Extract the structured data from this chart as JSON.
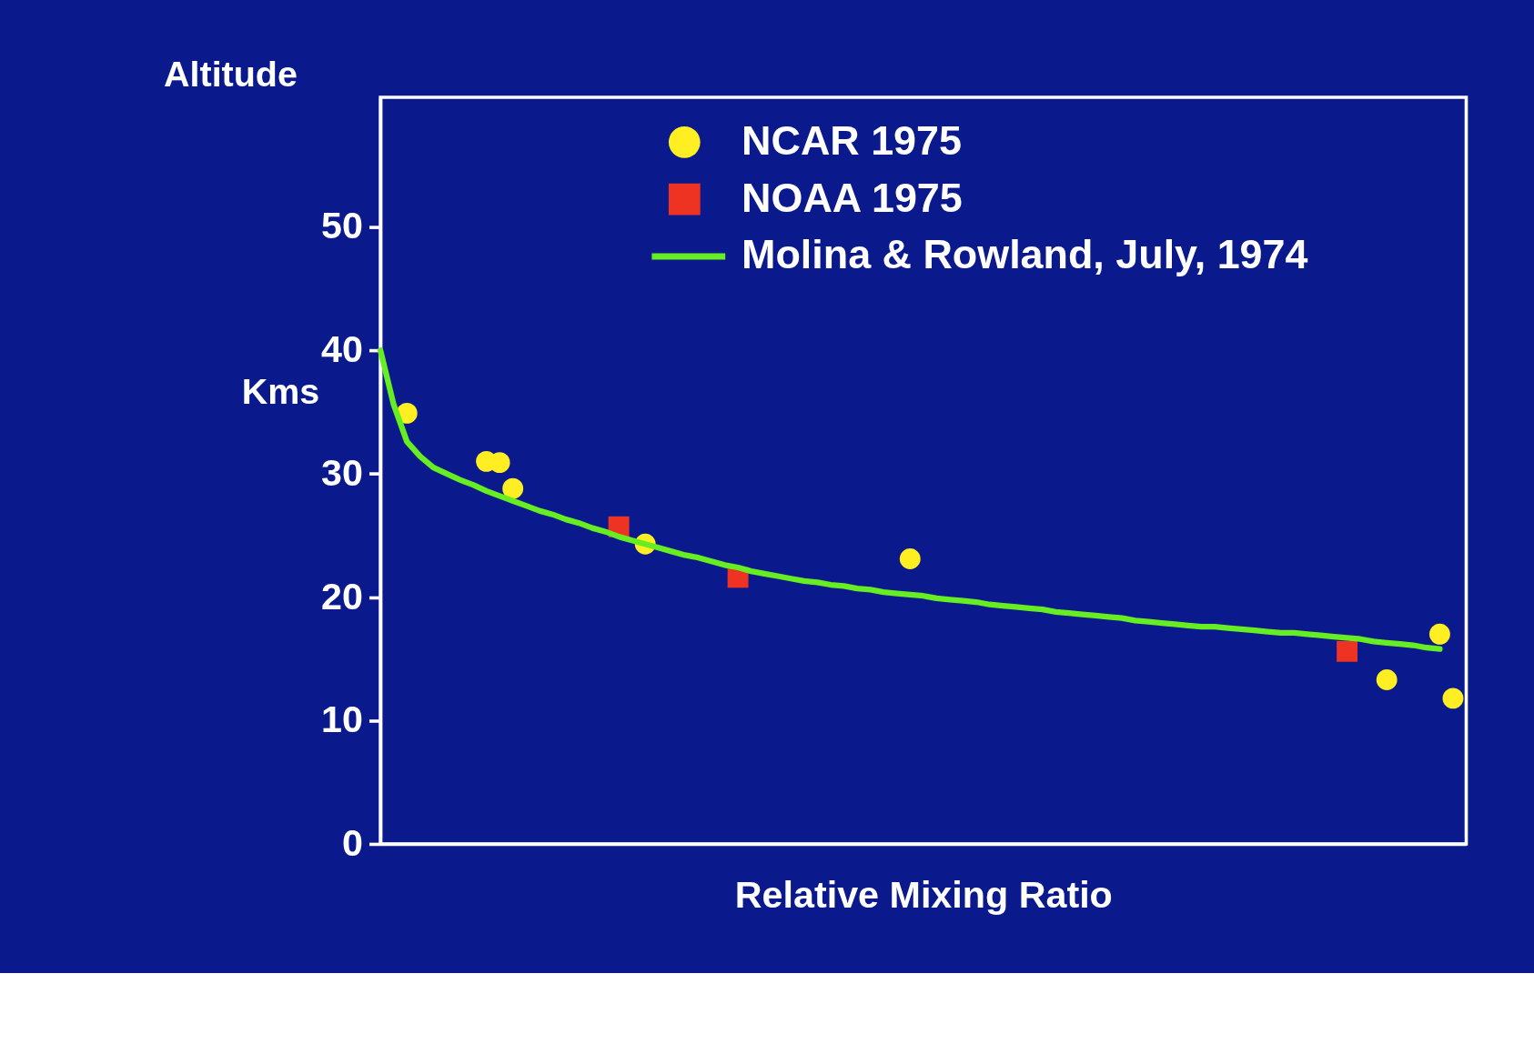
{
  "chart_data": {
    "type": "scatter",
    "title": "Altitude",
    "xlabel": "Relative Mixing Ratio",
    "ylabel": "Kms",
    "categories": [
      null,
      null,
      null,
      null,
      null,
      null,
      null,
      null,
      null,
      null,
      null,
      null,
      null,
      null,
      null,
      null,
      null,
      null,
      null,
      null,
      null,
      null,
      null,
      null,
      null,
      null,
      null,
      null,
      null,
      null,
      null,
      null,
      null,
      null,
      null,
      null,
      null,
      null,
      null,
      null,
      null,
      null,
      null,
      null,
      null,
      null,
      null,
      null,
      null,
      null,
      null,
      null,
      null,
      null,
      null,
      null,
      null,
      null,
      null,
      null,
      null,
      null,
      null,
      null,
      null,
      null,
      null,
      null,
      null,
      null,
      null,
      null,
      null,
      null,
      null,
      null,
      null,
      null,
      null,
      null,
      null,
      null,
      null
    ],
    "ylim": [
      0,
      60.5
    ],
    "yticks": [
      0,
      10,
      20,
      30,
      40,
      50
    ],
    "grid": false,
    "legend": "top",
    "series": [
      {
        "name": "NCAR 1975",
        "marker": "circle",
        "color": "#ffee22",
        "values": [
          null,
          null,
          34.9,
          null,
          null,
          null,
          null,
          null,
          31.0,
          30.9,
          28.8,
          null,
          null,
          null,
          null,
          null,
          null,
          null,
          null,
          null,
          24.3,
          null,
          null,
          null,
          null,
          null,
          null,
          null,
          null,
          null,
          null,
          null,
          null,
          null,
          null,
          null,
          null,
          null,
          null,
          null,
          23.1,
          null,
          null,
          null,
          null,
          null,
          null,
          null,
          null,
          null,
          null,
          null,
          null,
          null,
          null,
          null,
          null,
          null,
          null,
          null,
          null,
          null,
          null,
          null,
          null,
          null,
          null,
          null,
          null,
          null,
          null,
          null,
          null,
          null,
          null,
          null,
          13.3,
          null,
          null,
          null,
          17.0,
          11.8,
          null
        ]
      },
      {
        "name": "NOAA 1975",
        "marker": "square",
        "color": "#ee3322",
        "values": [
          null,
          null,
          null,
          null,
          null,
          null,
          null,
          null,
          null,
          null,
          null,
          null,
          null,
          null,
          null,
          null,
          null,
          null,
          25.7,
          null,
          null,
          null,
          null,
          null,
          null,
          null,
          null,
          21.6,
          null,
          null,
          null,
          null,
          null,
          null,
          null,
          null,
          null,
          null,
          null,
          null,
          null,
          null,
          null,
          null,
          null,
          null,
          null,
          null,
          null,
          null,
          null,
          null,
          null,
          null,
          null,
          null,
          null,
          null,
          null,
          null,
          null,
          null,
          null,
          null,
          null,
          null,
          null,
          null,
          null,
          null,
          null,
          null,
          null,
          15.6,
          null,
          null,
          null,
          null,
          null,
          null,
          null,
          null,
          null
        ]
      },
      {
        "name": "Molina & Rowland, July, 1974",
        "type": "line",
        "marker": "none",
        "color": "#66ee22",
        "values": [
          40.0,
          35.6,
          32.6,
          31.4,
          30.5,
          30.0,
          29.5,
          29.1,
          28.6,
          28.2,
          27.8,
          27.4,
          27.0,
          26.7,
          26.3,
          26.0,
          25.6,
          25.3,
          24.9,
          24.6,
          24.3,
          24.0,
          23.7,
          23.4,
          23.2,
          22.9,
          22.6,
          22.4,
          22.1,
          21.9,
          21.7,
          21.5,
          21.3,
          21.2,
          21.0,
          20.9,
          20.7,
          20.6,
          20.4,
          20.3,
          20.2,
          20.1,
          19.9,
          19.8,
          19.7,
          19.6,
          19.4,
          19.3,
          19.2,
          19.1,
          19.0,
          18.8,
          18.7,
          18.6,
          18.5,
          18.4,
          18.3,
          18.1,
          18.0,
          17.9,
          17.8,
          17.7,
          17.6,
          17.6,
          17.5,
          17.4,
          17.3,
          17.2,
          17.1,
          17.1,
          17.0,
          16.9,
          16.8,
          16.7,
          16.6,
          16.4,
          16.3,
          16.2,
          16.1,
          15.9,
          15.8,
          null,
          null
        ]
      }
    ]
  }
}
